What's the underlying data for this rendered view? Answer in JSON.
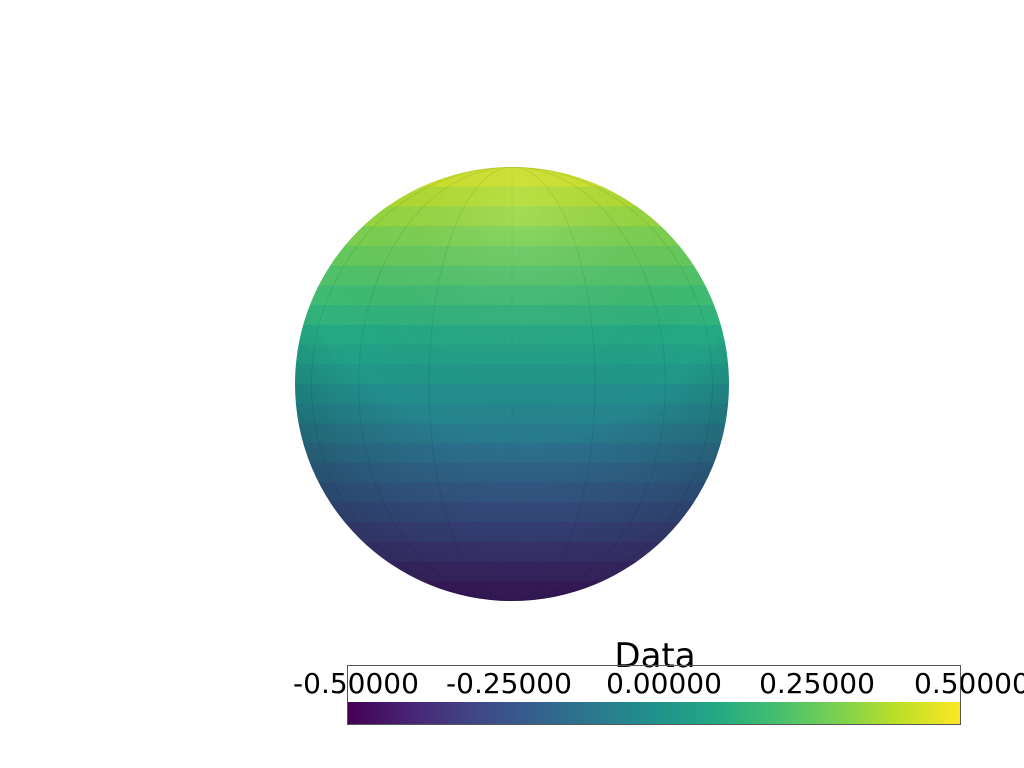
{
  "scene": {
    "object": "sphere",
    "colormap": "viridis",
    "background": "#ffffff"
  },
  "scalar_bar": {
    "title": "Data",
    "ticks": [
      "-0.50000",
      "-0.25000",
      "0.00000",
      "0.25000",
      "0.50000"
    ],
    "range": [
      -0.5,
      0.5
    ],
    "colors": [
      "#440154",
      "#482475",
      "#414487",
      "#355f8d",
      "#2a788e",
      "#21918c",
      "#22a884",
      "#44bf70",
      "#7ad151",
      "#bddf26",
      "#fde725"
    ]
  }
}
